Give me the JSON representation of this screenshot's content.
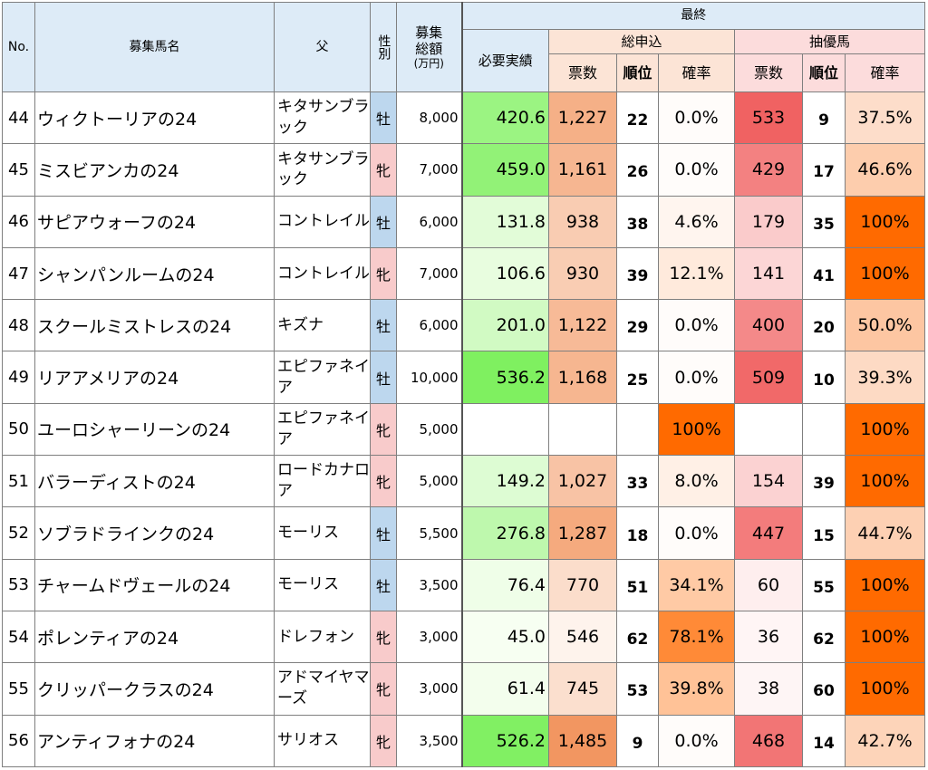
{
  "header": {
    "no": "No.",
    "name": "募集馬名",
    "sire": "父",
    "sex": "性別",
    "total": "募集総額",
    "total_unit": "(万円)",
    "final": "最終",
    "required": "必要実績",
    "application": "総申込",
    "lottery": "抽優馬",
    "votes": "票数",
    "rank": "順位",
    "prob": "確率"
  },
  "colors": {
    "header_blue": "#ddebf7",
    "male_sex": "#bdd7ee",
    "female_sex": "#f8cbcb",
    "required_scale": [
      "#f8fff3",
      "#7ef05f"
    ],
    "votes_scale": [
      "#fffcfa",
      "#f2955f"
    ],
    "apply_prob_scale": [
      "#fffcfa",
      "#ff6a00"
    ],
    "lottery_votes_scale": [
      "#fffafa",
      "#f06060"
    ],
    "lottery_prob_scale": [
      "#fde2d2",
      "#ff6a00"
    ]
  },
  "rows": [
    {
      "no": "44",
      "name": "ウィクトーリアの24",
      "sire": "キタサンブラック",
      "sex": "牡",
      "total": "8,000",
      "required": "420.6",
      "apply_votes": "1,227",
      "apply_rank": "22",
      "apply_prob": "0.0%",
      "lot_votes": "533",
      "lot_rank": "9",
      "lot_prob": "37.5%"
    },
    {
      "no": "45",
      "name": "ミスビアンカの24",
      "sire": "キタサンブラック",
      "sex": "牝",
      "total": "7,000",
      "required": "459.0",
      "apply_votes": "1,161",
      "apply_rank": "26",
      "apply_prob": "0.0%",
      "lot_votes": "429",
      "lot_rank": "17",
      "lot_prob": "46.6%"
    },
    {
      "no": "46",
      "name": "サピアウォーフの24",
      "sire": "コントレイル",
      "sex": "牡",
      "total": "6,000",
      "required": "131.8",
      "apply_votes": "938",
      "apply_rank": "38",
      "apply_prob": "4.6%",
      "lot_votes": "179",
      "lot_rank": "35",
      "lot_prob": "100%"
    },
    {
      "no": "47",
      "name": "シャンパンルームの24",
      "sire": "コントレイル",
      "sex": "牝",
      "total": "7,000",
      "required": "106.6",
      "apply_votes": "930",
      "apply_rank": "39",
      "apply_prob": "12.1%",
      "lot_votes": "141",
      "lot_rank": "41",
      "lot_prob": "100%"
    },
    {
      "no": "48",
      "name": "スクールミストレスの24",
      "sire": "キズナ",
      "sex": "牡",
      "total": "6,000",
      "required": "201.0",
      "apply_votes": "1,122",
      "apply_rank": "29",
      "apply_prob": "0.0%",
      "lot_votes": "400",
      "lot_rank": "20",
      "lot_prob": "50.0%"
    },
    {
      "no": "49",
      "name": "リアアメリアの24",
      "sire": "エピファネイア",
      "sex": "牡",
      "total": "10,000",
      "required": "536.2",
      "apply_votes": "1,168",
      "apply_rank": "25",
      "apply_prob": "0.0%",
      "lot_votes": "509",
      "lot_rank": "10",
      "lot_prob": "39.3%"
    },
    {
      "no": "50",
      "name": "ユーロシャーリーンの24",
      "sire": "エピファネイア",
      "sex": "牝",
      "total": "5,000",
      "required": "",
      "apply_votes": "",
      "apply_rank": "",
      "apply_prob": "100%",
      "lot_votes": "",
      "lot_rank": "",
      "lot_prob": "100%"
    },
    {
      "no": "51",
      "name": "バラーディストの24",
      "sire": "ロードカナロア",
      "sex": "牝",
      "total": "5,000",
      "required": "149.2",
      "apply_votes": "1,027",
      "apply_rank": "33",
      "apply_prob": "8.0%",
      "lot_votes": "154",
      "lot_rank": "39",
      "lot_prob": "100%"
    },
    {
      "no": "52",
      "name": "ソブラドラインクの24",
      "sire": "モーリス",
      "sex": "牡",
      "total": "5,500",
      "required": "276.8",
      "apply_votes": "1,287",
      "apply_rank": "18",
      "apply_prob": "0.0%",
      "lot_votes": "447",
      "lot_rank": "15",
      "lot_prob": "44.7%"
    },
    {
      "no": "53",
      "name": "チャームドヴェールの24",
      "sire": "モーリス",
      "sex": "牡",
      "total": "3,500",
      "required": "76.4",
      "apply_votes": "770",
      "apply_rank": "51",
      "apply_prob": "34.1%",
      "lot_votes": "60",
      "lot_rank": "55",
      "lot_prob": "100%"
    },
    {
      "no": "54",
      "name": "ポレンティアの24",
      "sire": "ドレフォン",
      "sex": "牝",
      "total": "3,000",
      "required": "45.0",
      "apply_votes": "546",
      "apply_rank": "62",
      "apply_prob": "78.1%",
      "lot_votes": "36",
      "lot_rank": "62",
      "lot_prob": "100%"
    },
    {
      "no": "55",
      "name": "クリッパークラスの24",
      "sire": "アドマイヤマーズ",
      "sex": "牝",
      "total": "3,000",
      "required": "61.4",
      "apply_votes": "745",
      "apply_rank": "53",
      "apply_prob": "39.8%",
      "lot_votes": "38",
      "lot_rank": "60",
      "lot_prob": "100%"
    },
    {
      "no": "56",
      "name": "アンティフォナの24",
      "sire": "サリオス",
      "sex": "牝",
      "total": "3,500",
      "required": "526.2",
      "apply_votes": "1,485",
      "apply_rank": "9",
      "apply_prob": "0.0%",
      "lot_votes": "468",
      "lot_rank": "14",
      "lot_prob": "42.7%"
    }
  ]
}
